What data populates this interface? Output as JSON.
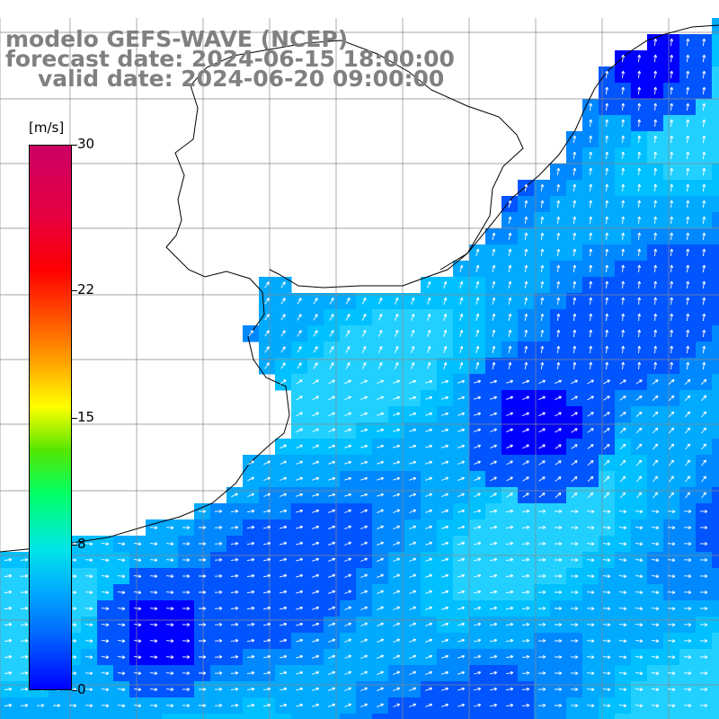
{
  "header": {
    "title": "modelo GEFS-WAVE (NCEP)",
    "forecast": "forecast date: 2024-06-15 18:00:00",
    "valid": "valid date: 2024-06-20 09:00:00"
  },
  "colorbar": {
    "unit": "[m/s]",
    "min": 0,
    "max": 30,
    "tick_labels": [
      "30",
      "22",
      "15",
      "8",
      "0"
    ],
    "tick_values": [
      30,
      22,
      15,
      8,
      0
    ]
  },
  "map": {
    "variable": "wind speed with direction arrows",
    "land_color": "#ffffff",
    "coast_color": "#000000",
    "grid_color": "#888888",
    "arrow_color": "#ffffff"
  },
  "palette": {
    "deep_blue": "#0000ff",
    "blue": "#0055ff",
    "mid_blue": "#0088ff",
    "light_blue": "#00aaff",
    "cyan_blue": "#00c0ff",
    "pale_cyan": "#22d0ff"
  }
}
